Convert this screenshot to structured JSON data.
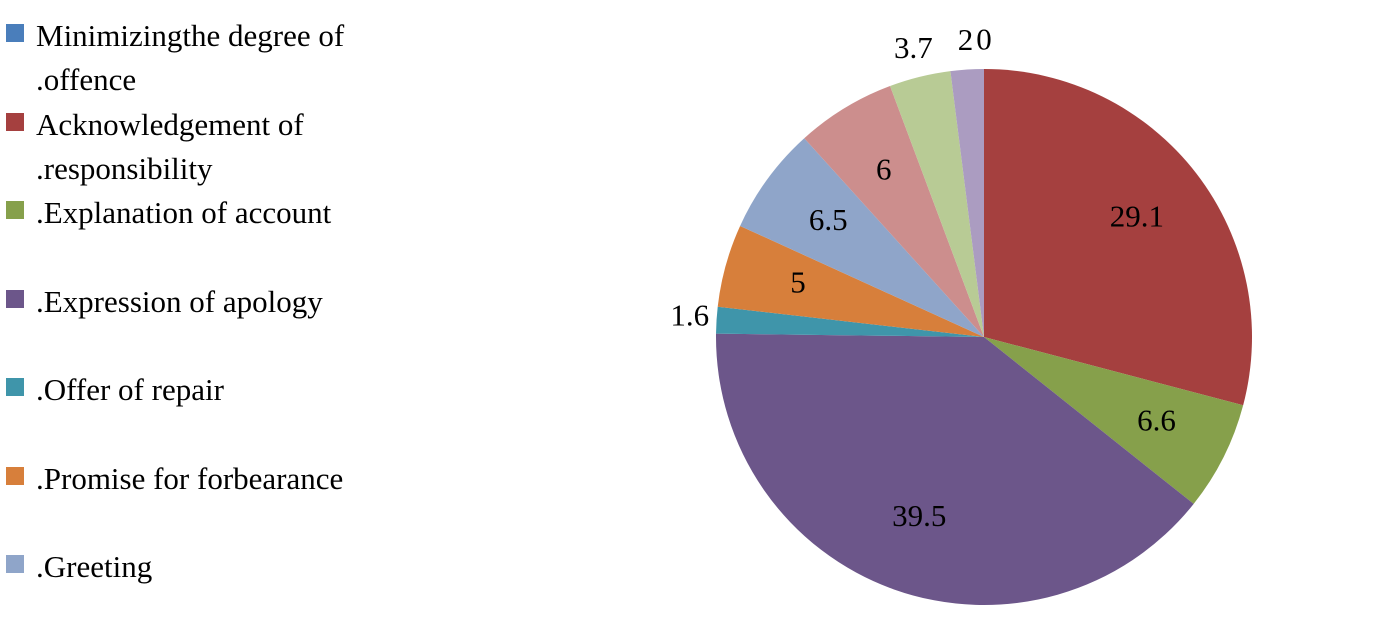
{
  "chart_data": {
    "type": "pie",
    "categories": [
      "Minimizingthe degree of .offence",
      "Acknowledgement of .responsibility",
      ".Explanation of account",
      ".Expression of apology",
      ".Offer of repair",
      ".Promise for forbearance",
      ".Greeting",
      null,
      null,
      null
    ],
    "values": [
      0,
      29.1,
      6.6,
      39.5,
      1.6,
      5,
      6.5,
      6,
      3.7,
      2
    ],
    "colors": [
      "#4a7ebb",
      "#a5403f",
      "#86a04b",
      "#6c568a",
      "#3f95aa",
      "#d77f3b",
      "#8fa5c9",
      "#cc8e8d",
      "#b8cb95",
      "#ab9cc1"
    ]
  }
}
